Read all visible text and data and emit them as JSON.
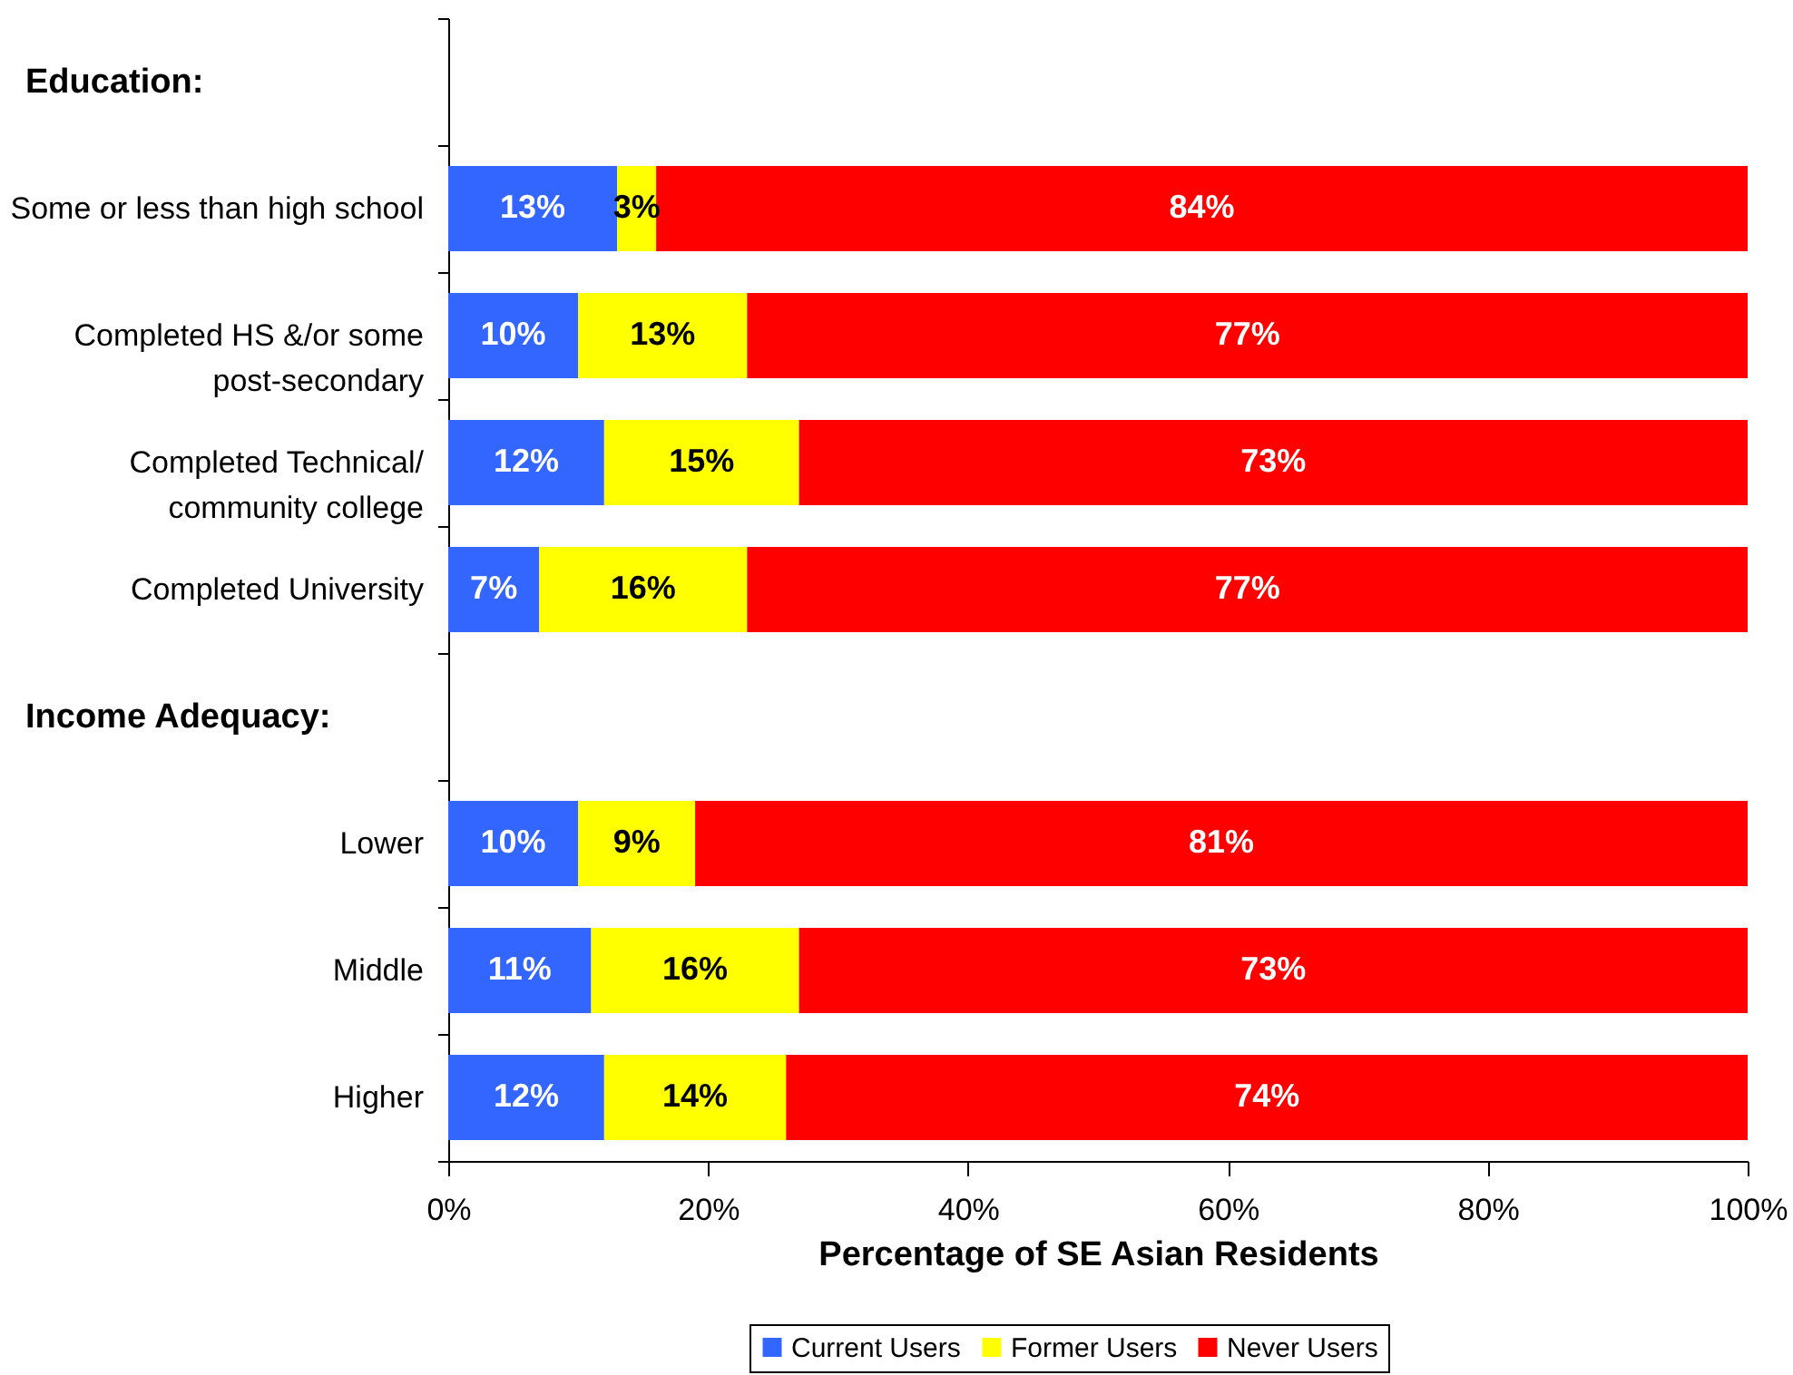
{
  "chart_data": {
    "type": "bar",
    "orientation": "horizontal",
    "stacked": true,
    "xlabel": "Percentage of SE Asian Residents",
    "categories": [
      null,
      "Some or less than high school",
      "Completed HS &/or some post-secondary",
      "Completed Technical/ community college",
      "Completed University",
      null,
      "Lower",
      "Middle",
      "Higher"
    ],
    "annotations": [
      "Education:",
      "Income Adequacy:"
    ],
    "series": [
      {
        "name": "Current Users",
        "color": "#3366ff",
        "values": [
          null,
          13,
          10,
          12,
          7,
          null,
          10,
          11,
          12
        ],
        "value_labels": [
          null,
          "13%",
          "10%",
          "12%",
          "7%",
          null,
          "10%",
          "11%",
          "12%"
        ]
      },
      {
        "name": "Former Users",
        "color": "#ffff00",
        "values": [
          null,
          3,
          13,
          15,
          16,
          null,
          9,
          16,
          14
        ],
        "value_labels": [
          null,
          "3%",
          "13%",
          "15%",
          "16%",
          null,
          "9%",
          "16%",
          "14%"
        ]
      },
      {
        "name": "Never Users",
        "color": "#ff0000",
        "values": [
          null,
          84,
          77,
          73,
          77,
          null,
          81,
          73,
          74
        ],
        "value_labels": [
          null,
          "84%",
          "77%",
          "73%",
          "77%",
          null,
          "81%",
          "73%",
          "74%"
        ]
      }
    ],
    "xlim": [
      0,
      100
    ],
    "xticks": [
      {
        "value": 0,
        "label": "0%"
      },
      {
        "value": 20,
        "label": "20%"
      },
      {
        "value": 40,
        "label": "40%"
      },
      {
        "value": 60,
        "label": "60%"
      },
      {
        "value": 80,
        "label": "80%"
      },
      {
        "value": 100,
        "label": "100%"
      }
    ],
    "grid": false,
    "legend": "bottom"
  }
}
